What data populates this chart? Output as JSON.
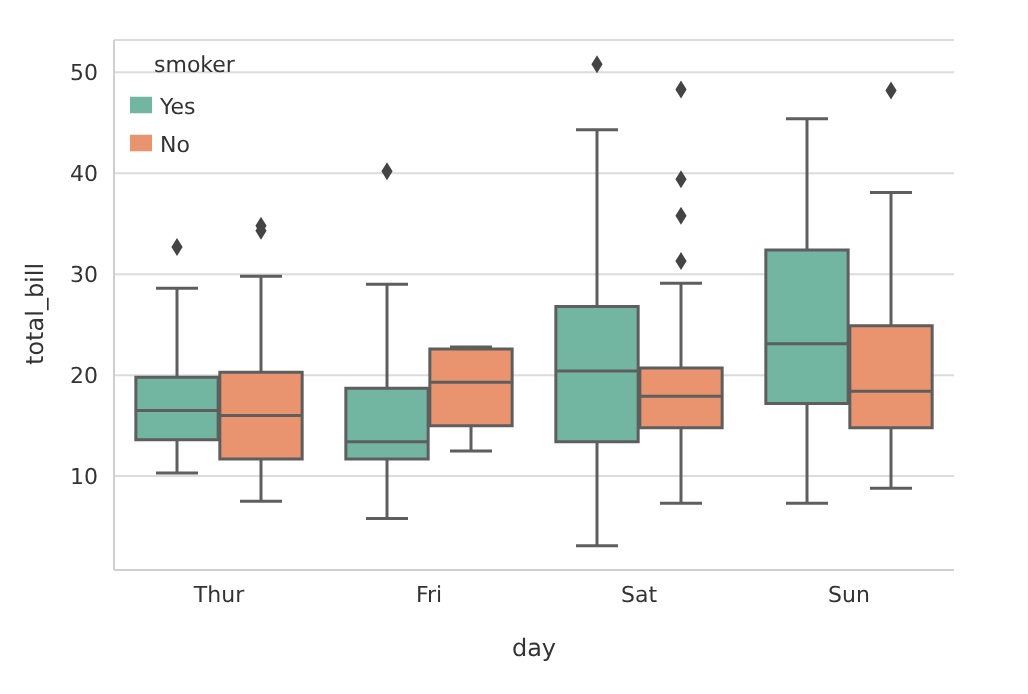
{
  "chart_data": {
    "type": "box",
    "xlabel": "day",
    "ylabel": "total_bill",
    "legend_title": "smoker",
    "categories": [
      "Thur",
      "Fri",
      "Sat",
      "Sun"
    ],
    "series": [
      {
        "name": "Yes",
        "color": "#72b6a1",
        "boxes": [
          {
            "low": 10.3,
            "q1": 13.6,
            "median": 16.5,
            "q3": 19.8,
            "high": 28.6,
            "outliers": [
              32.7
            ]
          },
          {
            "low": 5.8,
            "q1": 11.7,
            "median": 13.4,
            "q3": 18.7,
            "high": 29.0,
            "outliers": [
              40.2
            ]
          },
          {
            "low": 3.1,
            "q1": 13.4,
            "median": 20.4,
            "q3": 26.8,
            "high": 44.3,
            "outliers": [
              50.8
            ]
          },
          {
            "low": 7.3,
            "q1": 17.2,
            "median": 23.1,
            "q3": 32.4,
            "high": 45.4
          }
        ]
      },
      {
        "name": "No",
        "color": "#e9936f",
        "boxes": [
          {
            "low": 7.5,
            "q1": 11.7,
            "median": 16.0,
            "q3": 20.3,
            "high": 29.8,
            "outliers": [
              34.8,
              34.3
            ]
          },
          {
            "low": 12.5,
            "q1": 15.0,
            "median": 19.3,
            "q3": 22.6,
            "high": 22.8
          },
          {
            "low": 7.3,
            "q1": 14.8,
            "median": 17.9,
            "q3": 20.7,
            "high": 29.1,
            "outliers": [
              31.3,
              35.8,
              39.4,
              48.3
            ]
          },
          {
            "low": 8.8,
            "q1": 14.8,
            "median": 18.4,
            "q3": 24.9,
            "high": 38.1,
            "outliers": [
              48.2
            ]
          }
        ]
      }
    ],
    "ylim": [
      0.7,
      53.2
    ],
    "yticks": [
      10,
      20,
      30,
      40,
      50
    ],
    "grid": "y",
    "legend": "top left"
  }
}
